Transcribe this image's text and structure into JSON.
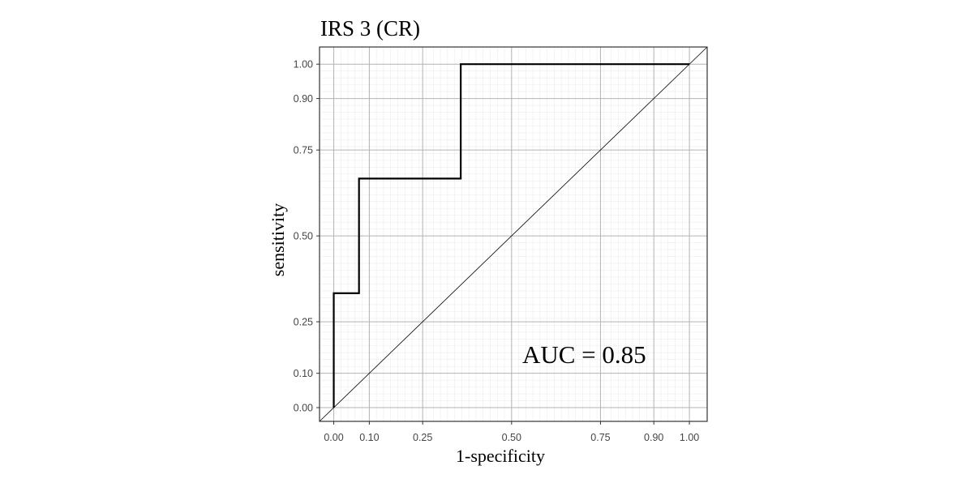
{
  "chart_data": {
    "type": "line",
    "title": "IRS 3 (CR)",
    "xlabel": "1-specificity",
    "ylabel": "sensitivity",
    "xlim": [
      -0.04,
      1.05
    ],
    "ylim": [
      -0.04,
      1.05
    ],
    "x_ticks": [
      0.0,
      0.1,
      0.25,
      0.5,
      0.75,
      0.9,
      1.0
    ],
    "x_tick_labels": [
      "0.00",
      "0.10",
      "0.25",
      "0.50",
      "0.75",
      "0.90",
      "1.00"
    ],
    "y_ticks": [
      0.0,
      0.1,
      0.25,
      0.5,
      0.75,
      0.9,
      1.0
    ],
    "y_tick_labels": [
      "0.00",
      "0.10",
      "0.25",
      "0.50",
      "0.75",
      "0.90",
      "1.00"
    ],
    "grid": true,
    "background": "#ffffff",
    "series": [
      {
        "style": "step",
        "color": "#000000",
        "x": [
          0.0,
          0.0,
          0.0,
          0.071,
          0.071,
          0.071,
          0.357,
          0.357,
          0.357,
          1.0
        ],
        "y": [
          0.0,
          0.333,
          0.333,
          0.333,
          0.667,
          0.667,
          0.667,
          1.0,
          1.0,
          1.0
        ]
      },
      {
        "style": "reference",
        "color": "#000000",
        "x": [
          -0.04,
          1.05
        ],
        "y": [
          -0.04,
          1.05
        ]
      }
    ],
    "annotations": [
      {
        "text": "AUC = 0.85",
        "x": 0.53,
        "y": 0.13
      }
    ]
  }
}
